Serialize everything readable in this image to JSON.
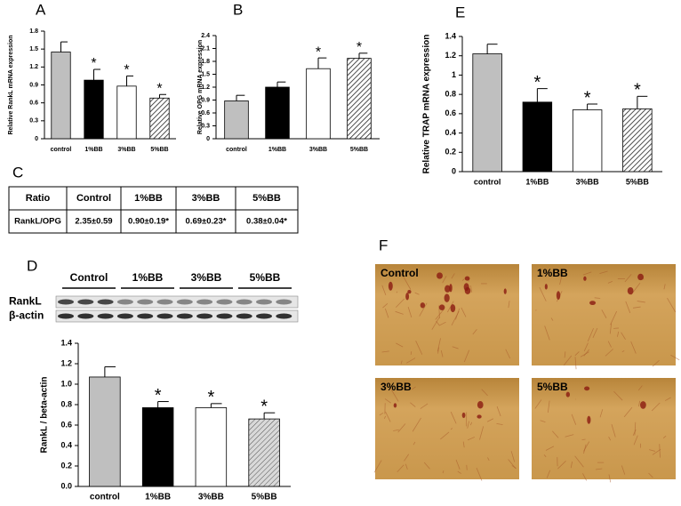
{
  "chart_data": [
    {
      "panel": "A",
      "type": "bar",
      "y_label": "Relative RankL mRNA expression",
      "categories": [
        "control",
        "1%BB",
        "3%BB",
        "5%BB"
      ],
      "values": [
        1.45,
        0.98,
        0.88,
        0.68
      ],
      "errors": [
        0.17,
        0.18,
        0.17,
        0.06
      ],
      "annotations": [
        null,
        "*",
        "*",
        "*"
      ],
      "colors": [
        "#bfbfbf",
        "#000000",
        "#ffffff",
        "#ffffff"
      ],
      "hatch": [
        false,
        false,
        false,
        true
      ],
      "ylim": [
        0,
        1.8
      ],
      "yticks": [
        0,
        0.3,
        0.6,
        0.9,
        1.2,
        1.5,
        1.8
      ]
    },
    {
      "panel": "B",
      "type": "bar",
      "y_label": "Relative OPG mRNA expression",
      "categories": [
        "control",
        "1%BB",
        "3%BB",
        "5%BB"
      ],
      "values": [
        0.88,
        1.2,
        1.63,
        1.87
      ],
      "errors": [
        0.13,
        0.12,
        0.25,
        0.12
      ],
      "annotations": [
        null,
        null,
        "*",
        "*"
      ],
      "colors": [
        "#bfbfbf",
        "#000000",
        "#ffffff",
        "#ffffff"
      ],
      "hatch": [
        false,
        false,
        false,
        true
      ],
      "ylim": [
        0,
        2.4
      ],
      "yticks": [
        0,
        0.3,
        0.6,
        0.9,
        1.2,
        1.5,
        1.8,
        2.1,
        2.4
      ]
    },
    {
      "panel": "E",
      "type": "bar",
      "y_label": "Relative TRAP mRNA expression",
      "categories": [
        "control",
        "1%BB",
        "3%BB",
        "5%BB"
      ],
      "values": [
        1.22,
        0.72,
        0.64,
        0.65
      ],
      "errors": [
        0.1,
        0.14,
        0.06,
        0.13
      ],
      "annotations": [
        null,
        "*",
        "*",
        "*"
      ],
      "colors": [
        "#bfbfbf",
        "#000000",
        "#ffffff",
        "#ffffff"
      ],
      "hatch": [
        false,
        false,
        false,
        true
      ],
      "ylim": [
        0,
        1.4
      ],
      "yticks": [
        0,
        0.2,
        0.4,
        0.6,
        0.8,
        1,
        1.2,
        1.4
      ]
    },
    {
      "type": "bar",
      "y_label": "RankL / beta-actin",
      "categories": [
        "control",
        "1%BB",
        "3%BB",
        "5%BB"
      ],
      "values": [
        1.07,
        0.77,
        0.77,
        0.66
      ],
      "errors": [
        0.1,
        0.06,
        0.04,
        0.06
      ],
      "annotations": [
        null,
        "*",
        "*",
        "*"
      ],
      "colors": [
        "#bfbfbf",
        "#000000",
        "#ffffff",
        "#d9d9d9"
      ],
      "hatch": [
        false,
        false,
        false,
        true
      ],
      "ylim": [
        0,
        1.4
      ],
      "yticks": [
        {
          "value": 0,
          "label": "0.0"
        },
        0.2,
        0.4,
        0.6,
        0.8,
        {
          "value": 1,
          "label": "1.0"
        },
        1.2,
        1.4
      ]
    }
  ],
  "table": {
    "panel": "C",
    "header": [
      "Ratio",
      "Control",
      "1%BB",
      "3%BB",
      "5%BB"
    ],
    "rows": [
      [
        "RankL/OPG",
        "2.35±0.59",
        "0.90±0.19*",
        "0.69±0.23*",
        "0.38±0.04*"
      ]
    ]
  },
  "blot": {
    "panel": "D",
    "groups": [
      "Control",
      "1%BB",
      "3%BB",
      "5%BB"
    ],
    "bands": [
      "RankL",
      "β-actin"
    ]
  },
  "histology": {
    "panel": "F",
    "images": [
      "Control",
      "1%BB",
      "3%BB",
      "5%BB"
    ]
  }
}
